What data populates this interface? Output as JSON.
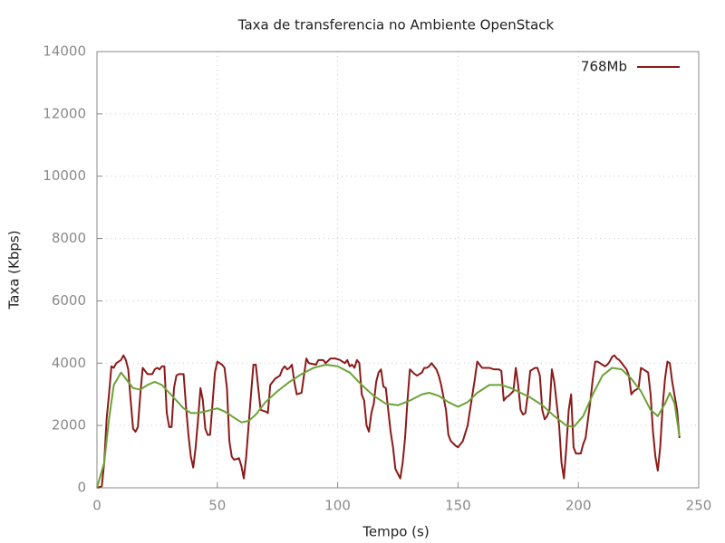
{
  "chart_data": {
    "type": "line",
    "title": "Taxa de transferencia no Ambiente OpenStack",
    "x_label": "Tempo (s)",
    "y_label": "Taxa (Kbps)",
    "xlim": [
      0,
      250
    ],
    "xticks": [
      0,
      50,
      100,
      150,
      200,
      250
    ],
    "ylim": [
      0,
      14000
    ],
    "yticks": [
      0,
      2000,
      4000,
      6000,
      8000,
      10000,
      12000,
      14000
    ],
    "grid": true,
    "legend": "upper-right",
    "series": [
      {
        "name": "768Mb",
        "color": "#8b1a1a",
        "x": [
          0,
          2,
          3,
          4,
          5,
          6,
          7,
          8,
          9,
          10,
          11,
          12,
          13,
          14,
          15,
          16,
          17,
          18,
          19,
          21,
          23,
          24,
          25,
          26,
          27,
          28,
          29,
          30,
          31,
          32,
          33,
          34,
          36,
          37,
          38,
          39,
          40,
          41,
          42,
          43,
          44,
          45,
          46,
          47,
          48,
          49,
          50,
          52,
          53,
          54,
          55,
          56,
          57,
          59,
          60,
          61,
          62,
          63,
          64,
          65,
          66,
          67,
          68,
          70,
          71,
          72,
          74,
          76,
          77,
          78,
          79,
          80,
          81,
          82,
          83,
          85,
          86,
          87,
          88,
          91,
          92,
          94,
          95,
          97,
          99,
          101,
          103,
          104,
          105,
          106,
          107,
          108,
          109,
          110,
          111,
          112,
          113,
          114,
          115,
          116,
          117,
          118,
          119,
          120,
          121,
          122,
          123,
          124,
          126,
          127,
          128,
          129,
          130,
          132,
          133,
          135,
          136,
          137,
          138,
          139,
          140,
          141,
          142,
          143,
          145,
          146,
          147,
          149,
          150,
          151,
          152,
          154,
          155,
          156,
          157,
          158,
          159,
          160,
          163,
          165,
          167,
          168,
          169,
          170,
          171,
          173,
          174,
          175,
          176,
          177,
          178,
          179,
          180,
          182,
          183,
          184,
          185,
          186,
          187,
          188,
          189,
          190,
          192,
          193,
          194,
          195,
          196,
          197,
          198,
          199,
          201,
          202,
          203,
          204,
          205,
          206,
          207,
          208,
          210,
          211,
          212,
          213,
          214,
          215,
          216,
          217,
          218,
          220,
          221,
          222,
          223,
          224,
          225,
          226,
          227,
          229,
          230,
          231,
          232,
          233,
          234,
          235,
          236,
          237,
          238,
          239,
          241,
          242
        ],
        "values": [
          0,
          50,
          800,
          2200,
          3000,
          3900,
          3850,
          4000,
          4050,
          4100,
          4250,
          4100,
          3800,
          2800,
          1900,
          1800,
          1950,
          3000,
          3850,
          3650,
          3650,
          3800,
          3850,
          3800,
          3900,
          3900,
          2400,
          1950,
          1950,
          3200,
          3600,
          3650,
          3650,
          2600,
          1700,
          1000,
          650,
          1300,
          2200,
          3200,
          2800,
          1900,
          1700,
          1700,
          2700,
          3700,
          4050,
          3950,
          3850,
          3200,
          1500,
          1000,
          900,
          950,
          700,
          300,
          1000,
          2000,
          3000,
          3950,
          3950,
          3200,
          2500,
          2450,
          2400,
          3300,
          3500,
          3600,
          3800,
          3900,
          3800,
          3850,
          3950,
          3400,
          3000,
          3050,
          3600,
          4150,
          4000,
          3950,
          4100,
          4100,
          4000,
          4150,
          4150,
          4100,
          4000,
          4100,
          3900,
          3950,
          3850,
          4100,
          4000,
          3000,
          2800,
          2000,
          1800,
          2400,
          2700,
          3400,
          3700,
          3800,
          3250,
          3200,
          2500,
          1800,
          1300,
          600,
          300,
          800,
          1600,
          2800,
          3800,
          3650,
          3600,
          3700,
          3850,
          3850,
          3900,
          4000,
          3900,
          3800,
          3600,
          3300,
          2500,
          1700,
          1500,
          1350,
          1300,
          1400,
          1500,
          2000,
          2500,
          3000,
          3500,
          4050,
          3950,
          3850,
          3850,
          3800,
          3800,
          3750,
          2800,
          2900,
          2950,
          3100,
          3850,
          3300,
          2500,
          2350,
          2400,
          3000,
          3750,
          3850,
          3850,
          3600,
          2500,
          2200,
          2300,
          2500,
          3800,
          3400,
          2000,
          800,
          300,
          1300,
          2500,
          3000,
          1300,
          1100,
          1100,
          1400,
          1600,
          2200,
          2800,
          3500,
          4050,
          4050,
          3950,
          3900,
          3950,
          4050,
          4200,
          4250,
          4150,
          4100,
          4000,
          3800,
          3600,
          3000,
          3100,
          3150,
          3200,
          3850,
          3800,
          3700,
          3000,
          1800,
          1000,
          550,
          1300,
          2600,
          3500,
          4050,
          4000,
          3400,
          2500,
          1600
        ]
      },
      {
        "color": "#6aa337",
        "x": [
          0,
          3,
          5,
          7,
          10,
          12,
          15,
          18,
          21,
          24,
          27,
          30,
          33,
          36,
          39,
          42,
          45,
          50,
          53,
          57,
          60,
          63,
          66,
          70,
          75,
          80,
          85,
          90,
          95,
          100,
          105,
          110,
          115,
          120,
          125,
          130,
          135,
          138,
          142,
          146,
          150,
          154,
          158,
          163,
          168,
          172,
          176,
          180,
          185,
          190,
          195,
          198,
          202,
          206,
          210,
          214,
          218,
          222,
          226,
          230,
          233,
          236,
          238,
          240,
          242
        ],
        "values": [
          0,
          800,
          2200,
          3300,
          3700,
          3500,
          3200,
          3150,
          3300,
          3400,
          3300,
          3050,
          2800,
          2550,
          2400,
          2400,
          2450,
          2550,
          2450,
          2250,
          2100,
          2150,
          2350,
          2750,
          3100,
          3400,
          3650,
          3850,
          3950,
          3900,
          3700,
          3300,
          2950,
          2700,
          2650,
          2800,
          3000,
          3050,
          2950,
          2750,
          2600,
          2750,
          3050,
          3300,
          3300,
          3200,
          3050,
          2900,
          2650,
          2300,
          2000,
          1950,
          2300,
          3000,
          3600,
          3850,
          3800,
          3500,
          3100,
          2500,
          2300,
          2700,
          3050,
          2700,
          1650
        ]
      }
    ]
  }
}
